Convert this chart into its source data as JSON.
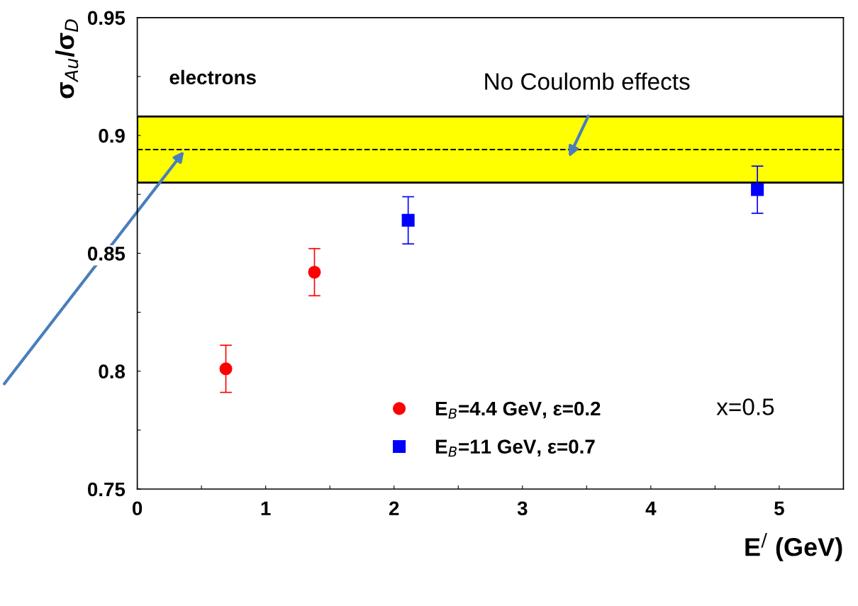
{
  "chart_data": {
    "type": "scatter",
    "xlabel": "E$^{/}$ (GeV)",
    "ylabel": "σ$_{Au}$/σ$_{D}$",
    "series": [
      {
        "name": "E$_{B}$=4.4 GeV, ε=0.2",
        "color": "#ff0000",
        "marker": "circle",
        "x": [
          0.69,
          1.38
        ],
        "values": [
          0.801,
          0.842
        ],
        "errors": [
          0.01,
          0.01
        ]
      },
      {
        "name": "E$_{B}$=11 GeV, ε=0.7",
        "color": "#0000ff",
        "marker": "square",
        "x": [
          2.11,
          4.83
        ],
        "values": [
          0.864,
          0.877
        ],
        "errors": [
          0.01,
          0.01
        ]
      }
    ],
    "xlim": [
      0,
      5.5
    ],
    "ylim": [
      0.75,
      0.95
    ],
    "xticks": [
      0,
      {
        "value": 0.5,
        "label": null
      },
      1,
      {
        "value": 1.5,
        "label": null
      },
      2,
      {
        "value": 2.5,
        "label": null
      },
      3,
      {
        "value": 3.5,
        "label": null
      },
      4,
      {
        "value": 4.5,
        "label": null
      },
      5
    ],
    "yticks": [
      {
        "value": 0.75,
        "label": "0.75"
      },
      {
        "value": 0.775,
        "label": null
      },
      {
        "value": 0.8,
        "label": "0.8"
      },
      {
        "value": 0.825,
        "label": null
      },
      {
        "value": 0.85,
        "label": "0.85"
      },
      {
        "value": 0.875,
        "label": null
      },
      {
        "value": 0.9,
        "label": "0.9"
      },
      {
        "value": 0.925,
        "label": null
      },
      {
        "value": 0.95,
        "label": "0.95"
      }
    ],
    "bands": [
      {
        "axis": "y",
        "from": 0.88,
        "to": 0.908,
        "color": "#ffff00"
      }
    ],
    "ref_lines": [
      {
        "axis": "y",
        "value": 0.894,
        "color": "#000000",
        "line_style": "dashed"
      }
    ],
    "annotations": [
      "electrons",
      "No Coulomb effects",
      "x=0.5"
    ],
    "grid": false,
    "legend": "bottom"
  }
}
